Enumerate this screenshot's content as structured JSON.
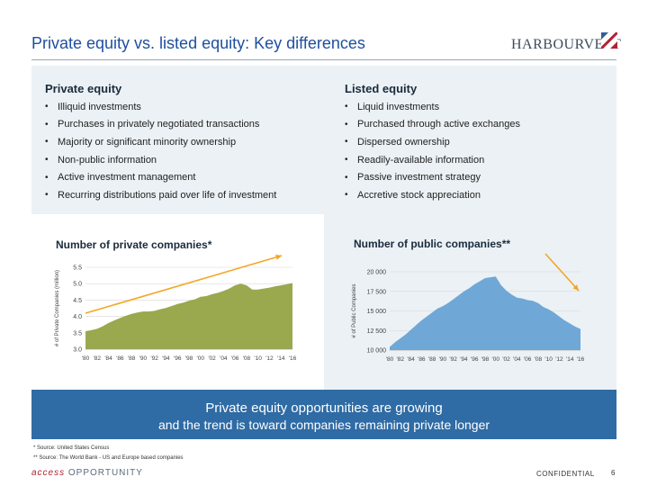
{
  "title": "Private equity vs. listed equity: Key differences",
  "logo": {
    "text": "HARBOURVEST"
  },
  "private": {
    "heading": "Private equity",
    "bullets": [
      "Illiquid investments",
      "Purchases in privately negotiated transactions",
      "Majority or significant minority ownership",
      "Non-public information",
      "Active investment management",
      "Recurring distributions paid over life of investment"
    ]
  },
  "listed": {
    "heading": "Listed equity",
    "bullets": [
      "Liquid investments",
      "Purchased through active exchanges",
      "Dispersed ownership",
      "Readily-available information",
      "Passive investment strategy",
      "Accretive stock appreciation"
    ]
  },
  "chart_data": [
    {
      "type": "area",
      "title": "Number of private companies*",
      "ylabel": "# of Private Companies (million)",
      "ylim": [
        3.0,
        5.5
      ],
      "yticks": [
        "3.0",
        "3.5",
        "4.0",
        "4.5",
        "5.0",
        "5.5"
      ],
      "xticks": [
        "'80",
        "'82",
        "'84",
        "'86",
        "'88",
        "'90",
        "'92",
        "'94",
        "'96",
        "'98",
        "'00",
        "'02",
        "'04",
        "'06",
        "'08",
        "'10",
        "'12",
        "'14",
        "'16"
      ],
      "color": "#9aa84e",
      "x": [
        1980,
        1981,
        1982,
        1983,
        1984,
        1985,
        1986,
        1987,
        1988,
        1989,
        1990,
        1991,
        1992,
        1993,
        1994,
        1995,
        1996,
        1997,
        1998,
        1999,
        2000,
        2001,
        2002,
        2003,
        2004,
        2005,
        2006,
        2007,
        2008,
        2009,
        2010,
        2011,
        2012,
        2013,
        2014,
        2015,
        2016
      ],
      "values": [
        3.55,
        3.58,
        3.62,
        3.7,
        3.8,
        3.88,
        3.95,
        4.02,
        4.08,
        4.12,
        4.15,
        4.15,
        4.17,
        4.22,
        4.26,
        4.32,
        4.38,
        4.42,
        4.48,
        4.52,
        4.6,
        4.62,
        4.68,
        4.72,
        4.78,
        4.85,
        4.95,
        5.0,
        4.95,
        4.82,
        4.82,
        4.85,
        4.88,
        4.92,
        4.95,
        4.98,
        5.02
      ],
      "arrow": "up"
    },
    {
      "type": "area",
      "title": "Number of public companies**",
      "ylabel": "# of Public Companies",
      "ylim": [
        10000,
        20000
      ],
      "yticks": [
        "10 000",
        "12 500",
        "15 000",
        "17 500",
        "20 000"
      ],
      "xticks": [
        "'80",
        "'82",
        "'84",
        "'86",
        "'88",
        "'90",
        "'92",
        "'94",
        "'96",
        "'98",
        "'00",
        "'02",
        "'04",
        "'06",
        "'08",
        "'10",
        "'12",
        "'14",
        "'16"
      ],
      "color": "#6fa8d6",
      "x": [
        1980,
        1981,
        1982,
        1983,
        1984,
        1985,
        1986,
        1987,
        1988,
        1989,
        1990,
        1991,
        1992,
        1993,
        1994,
        1995,
        1996,
        1997,
        1998,
        1999,
        2000,
        2001,
        2002,
        2003,
        2004,
        2005,
        2006,
        2007,
        2008,
        2009,
        2010,
        2011,
        2012,
        2013,
        2014,
        2015,
        2016
      ],
      "values": [
        10400,
        11000,
        11500,
        12000,
        12600,
        13200,
        13800,
        14300,
        14800,
        15300,
        15600,
        16000,
        16500,
        17000,
        17500,
        17900,
        18400,
        18800,
        19200,
        19300,
        19400,
        18300,
        17600,
        17100,
        16700,
        16600,
        16400,
        16300,
        16000,
        15500,
        15200,
        14800,
        14300,
        13800,
        13400,
        13000,
        12700
      ],
      "arrow": "down"
    }
  ],
  "banner": {
    "line1": "Private equity opportunities are growing",
    "line2": "and the trend is toward companies remaining private longer"
  },
  "footnotes": {
    "f1": "* Source: United States Census",
    "f2": "** Source: The World Bank - US and Europe based companies"
  },
  "footer": {
    "access": "access",
    "opportunity": "OPPORTUNITY",
    "confidential": "CONFIDENTIAL",
    "page": "6"
  }
}
